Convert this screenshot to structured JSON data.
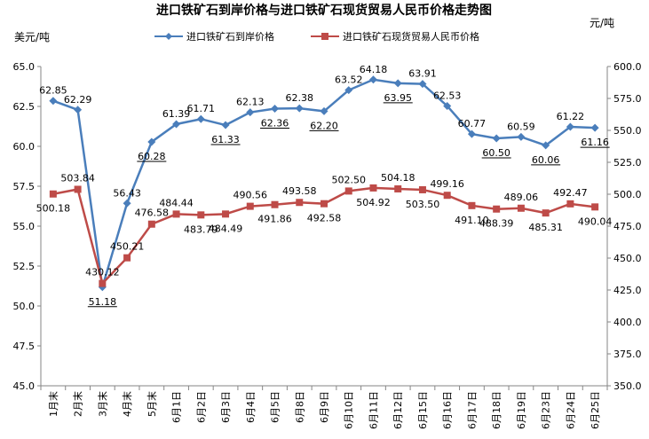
{
  "chart_data": {
    "type": "line",
    "title": "进口铁矿石到岸价格与进口铁矿石现货贸易人民币价格走势图",
    "y_left_label": "美元/吨",
    "y_right_label": "元/吨",
    "y_left_range": [
      45.0,
      65.0
    ],
    "y_right_range": [
      350.0,
      600.0
    ],
    "y_left_ticks": [
      "45.0",
      "47.5",
      "50.0",
      "52.5",
      "55.0",
      "57.5",
      "60.0",
      "62.5",
      "65.0"
    ],
    "y_right_ticks": [
      "350.0",
      "375.0",
      "400.0",
      "425.0",
      "450.0",
      "475.0",
      "500.0",
      "525.0",
      "550.0",
      "575.0",
      "600.0"
    ],
    "categories": [
      "1月末",
      "2月末",
      "3月末",
      "4月末",
      "5月末",
      "6月1日",
      "6月2日",
      "6月3日",
      "6月4日",
      "6月5日",
      "6月8日",
      "6月9日",
      "6月10日",
      "6月11日",
      "6月12日",
      "6月15日",
      "6月16日",
      "6月17日",
      "6月18日",
      "6月19日",
      "6月23日",
      "6月24日",
      "6月25日"
    ],
    "legend_position": "top",
    "grid": false,
    "series": [
      {
        "name": "进口铁矿石到岸价格",
        "axis": "left",
        "color": "#4a7ebb",
        "marker": "diamond",
        "values": [
          62.85,
          62.29,
          51.18,
          56.43,
          60.28,
          61.39,
          61.71,
          61.33,
          62.13,
          62.36,
          62.38,
          62.2,
          63.52,
          64.18,
          63.95,
          63.91,
          62.53,
          60.77,
          60.5,
          60.59,
          60.06,
          61.22,
          61.16
        ],
        "labels": [
          "62.85",
          "62.29",
          "51.18",
          "56.43",
          "60.28",
          "61.39",
          "61.71",
          "61.33",
          "62.13",
          "62.36",
          "62.38",
          "62.20",
          "63.52",
          "64.18",
          "63.95",
          "63.91",
          "62.53",
          "60.77",
          "60.50",
          "60.59",
          "60.06",
          "61.22",
          "61.16"
        ]
      },
      {
        "name": "进口铁矿石现货贸易人民币价格",
        "axis": "right",
        "color": "#be4b48",
        "marker": "square",
        "values": [
          500.18,
          503.84,
          430.12,
          450.21,
          476.58,
          484.44,
          483.79,
          484.49,
          490.56,
          491.86,
          493.58,
          492.58,
          502.5,
          504.92,
          504.18,
          503.5,
          499.16,
          491.1,
          488.39,
          489.06,
          485.31,
          492.47,
          490.04
        ],
        "labels": [
          "500.18",
          "503.84",
          "430.12",
          "450.21",
          "476.58",
          "484.44",
          "483.79",
          "484.49",
          "490.56",
          "491.86",
          "493.58",
          "492.58",
          "502.50",
          "504.92",
          "504.18",
          "503.50",
          "499.16",
          "491.10",
          "488.39",
          "489.06",
          "485.31",
          "492.47",
          "490.04"
        ]
      }
    ]
  }
}
